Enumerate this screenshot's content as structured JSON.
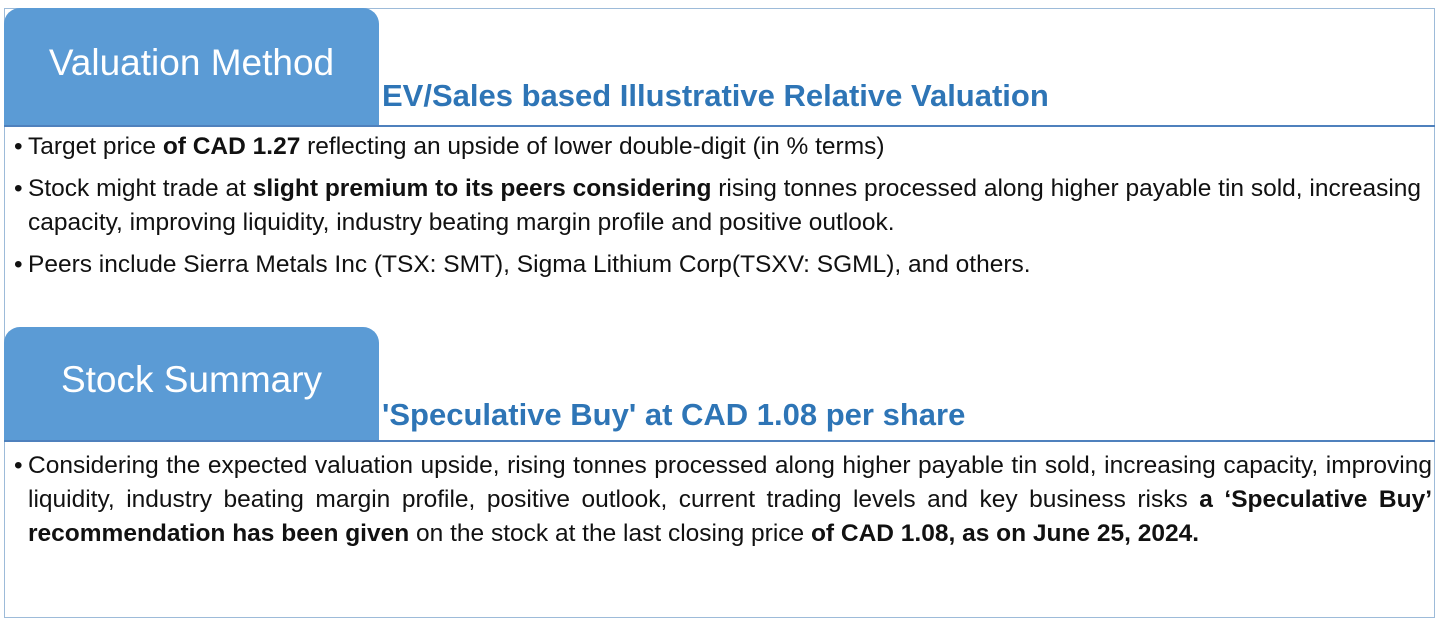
{
  "valuation": {
    "tab_label": "Valuation Method",
    "heading": "EV/Sales based Illustrative Relative Valuation",
    "bullets": [
      {
        "parts": [
          {
            "text": "Target price ",
            "bold": false
          },
          {
            "text": "of CAD 1.27",
            "bold": true
          },
          {
            "text": " reflecting an upside of lower double-digit (in % terms)",
            "bold": false
          }
        ]
      },
      {
        "parts": [
          {
            "text": "Stock might trade at ",
            "bold": false
          },
          {
            "text": "slight premium to its peers considering",
            "bold": true
          },
          {
            "text": " rising tonnes processed along higher payable tin sold, increasing capacity, improving liquidity, industry beating margin profile and positive outlook.",
            "bold": false
          }
        ]
      },
      {
        "parts": [
          {
            "text": "Peers include Sierra Metals Inc (TSX: SMT), Sigma Lithium Corp(TSXV: SGML), and others.",
            "bold": false
          }
        ]
      }
    ]
  },
  "summary": {
    "tab_label": "Stock Summary",
    "heading": "'Speculative Buy' at CAD 1.08 per share",
    "bullets": [
      {
        "parts": [
          {
            "text": "Considering the expected valuation upside, rising tonnes processed along higher payable tin sold, increasing capacity, improving liquidity, industry beating margin profile, positive outlook, current trading levels and key business risks ",
            "bold": false
          },
          {
            "text": "a ‘Speculative Buy’ recommendation has been given",
            "bold": true
          },
          {
            "text": " on the stock at the last closing price ",
            "bold": false
          },
          {
            "text": "of CAD 1.08, as on June 25, 2024.",
            "bold": true
          }
        ]
      }
    ]
  },
  "colors": {
    "tab_fill": "#5b9bd5",
    "heading_text": "#2e75b6",
    "rule": "#4f81bd",
    "frame_border": "#9dbbd9"
  }
}
